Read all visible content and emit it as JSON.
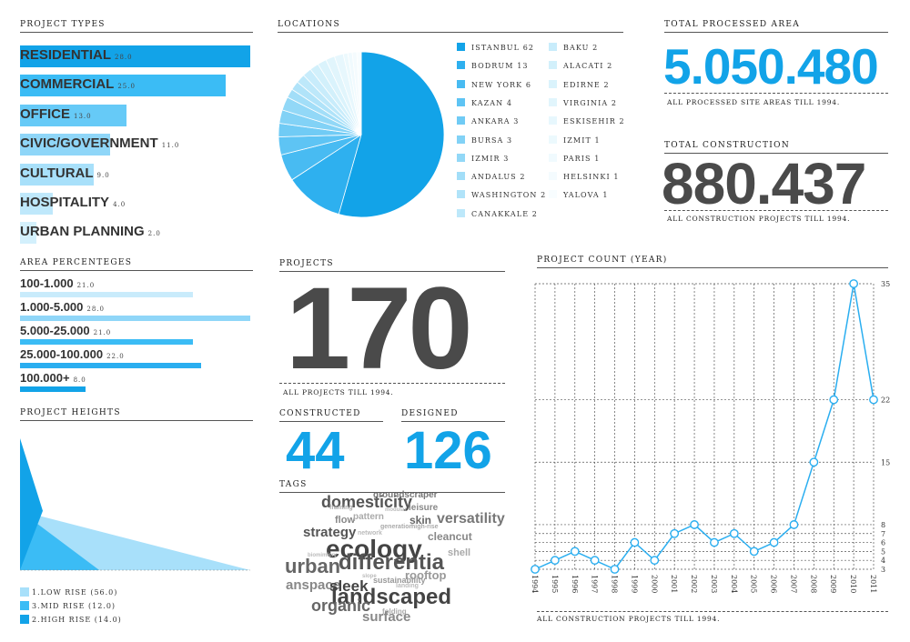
{
  "sections": {
    "project_types": "PROJECT TYPES",
    "locations": "LOCATIONS",
    "total_processed_area": "TOTAL PROCESSED AREA",
    "total_construction": "TOTAL CONSTRUCTION",
    "area_percentages": "AREA PERCENTEGES",
    "projects": "PROJECTS",
    "project_count_year": "PROJECT COUNT (YEAR)",
    "project_heights": "PROJECT HEIGHTS",
    "constructed": "CONSTRUCTED",
    "designed": "DESIGNED",
    "tags": "TAGS"
  },
  "stats": {
    "processed_area_value": "5.050.480",
    "processed_area_note": "ALL PROCESSED SITE AREAS TILL 1994.",
    "construction_value": "880.437",
    "construction_note": "ALL CONSTRUCTION PROJECTS TILL 1994.",
    "projects_value": "170",
    "projects_note": "ALL PROJECTS TILL 1994.",
    "constructed_value": "44",
    "designed_value": "126",
    "count_note": "ALL CONSTRUCTION PROJECTS TILL 1994."
  },
  "colors": {
    "accent": "#12a3e8",
    "mid": "#3bbcf5",
    "light": "#8fd6f8",
    "pale": "#c9ebfb",
    "text": "#444444"
  },
  "chart_data": [
    {
      "type": "bar",
      "name_ref": "project_types",
      "categories": [
        "RESIDENTIAL",
        "COMMERCIAL",
        "OFFICE",
        "CIVIC/GOVERNMENT",
        "CULTURAL",
        "HOSPITALITY",
        "URBAN PLANNING"
      ],
      "values": [
        28.0,
        25.0,
        13.0,
        11.0,
        9.0,
        4.0,
        2.0
      ],
      "value_labels": [
        "28.0",
        "25.0",
        "13.0",
        "11.0",
        "9.0",
        "4.0",
        "2.0"
      ],
      "colors": [
        "#12a3e8",
        "#3bbcf5",
        "#66caf7",
        "#8fd6f8",
        "#a8e0fa",
        "#bfe8fb",
        "#d3f0fc"
      ]
    },
    {
      "type": "pie",
      "name_ref": "locations",
      "categories": [
        "ISTANBUL",
        "BODRUM",
        "NEW YORK",
        "KAZAN",
        "ANKARA",
        "BURSA",
        "IZMIR",
        "ANDALUS",
        "WASHINGTON",
        "CANAKKALE",
        "BAKU",
        "ALACATI",
        "EDIRNE",
        "VIRGINIA",
        "ESKISEHIR",
        "IZMIT",
        "PARIS",
        "HELSINKI",
        "YALOVA"
      ],
      "values": [
        62,
        13,
        6,
        4,
        3,
        3,
        3,
        2,
        2,
        2,
        2,
        2,
        2,
        2,
        2,
        1,
        1,
        1,
        1
      ],
      "value_labels": [
        "62",
        "13",
        "6",
        "4",
        "3",
        "3",
        "3",
        "2",
        "2",
        "2",
        "2",
        "2",
        "2",
        "2",
        "2",
        "1",
        "1",
        "1",
        "1"
      ]
    },
    {
      "type": "bar",
      "name_ref": "area_percentages",
      "categories": [
        "100-1.000",
        "1.000-5.000",
        "5.000-25.000",
        "25.000-100.000",
        "100.000+"
      ],
      "values": [
        21.0,
        28.0,
        21.0,
        22.0,
        8.0
      ],
      "value_labels": [
        "21.0",
        "28.0",
        "21.0",
        "22.0",
        "8.0"
      ],
      "colors": [
        "#c9ebfb",
        "#8fd6f8",
        "#3bbcf5",
        "#2aaef0",
        "#12a3e8"
      ]
    },
    {
      "type": "area",
      "name_ref": "project_heights",
      "series": [
        {
          "name": "1.LOW RISE",
          "value": 56.0,
          "label": "(56.0)",
          "color": "#a8e0fa"
        },
        {
          "name": "3.MID RISE",
          "value": 12.0,
          "label": "(12.0)",
          "color": "#3bbcf5"
        },
        {
          "name": "2.HIGH RISE",
          "value": 14.0,
          "label": "(14.0)",
          "color": "#12a3e8"
        }
      ]
    },
    {
      "type": "line",
      "name_ref": "project_count_year",
      "x": [
        "1994",
        "1995",
        "1996",
        "1997",
        "1998",
        "1999",
        "2000",
        "2001",
        "2002",
        "2003",
        "2004",
        "2005",
        "2006",
        "2007",
        "2008",
        "2009",
        "2010",
        "2011"
      ],
      "y": [
        3,
        4,
        5,
        4,
        3,
        6,
        4,
        7,
        8,
        6,
        7,
        5,
        6,
        8,
        15,
        22,
        35,
        22
      ],
      "yticks": [
        3,
        4,
        5,
        6,
        7,
        8,
        15,
        22,
        35
      ],
      "ylim": [
        3,
        35
      ],
      "grid": true
    }
  ],
  "tags": [
    {
      "text": "domesticity",
      "size": 18,
      "color": "#555"
    },
    {
      "text": "groundscraper",
      "size": 10,
      "color": "#777"
    },
    {
      "text": "framing",
      "size": 7,
      "color": "#aaa"
    },
    {
      "text": "modular",
      "size": 6,
      "color": "#bbb"
    },
    {
      "text": "leisure",
      "size": 10,
      "color": "#888"
    },
    {
      "text": "flow",
      "size": 11,
      "color": "#888"
    },
    {
      "text": "pattern",
      "size": 10,
      "color": "#aaa"
    },
    {
      "text": "skin",
      "size": 12,
      "color": "#666"
    },
    {
      "text": "versatility",
      "size": 16,
      "color": "#777"
    },
    {
      "text": "strategy",
      "size": 15,
      "color": "#555"
    },
    {
      "text": "generation",
      "size": 7,
      "color": "#aaa"
    },
    {
      "text": "high-rise",
      "size": 7,
      "color": "#aaa"
    },
    {
      "text": "network",
      "size": 7,
      "color": "#bbb"
    },
    {
      "text": "cleancut",
      "size": 12,
      "color": "#888"
    },
    {
      "text": "ecology",
      "size": 28,
      "color": "#444"
    },
    {
      "text": "biomimicry",
      "size": 6,
      "color": "#bbb"
    },
    {
      "text": "shell",
      "size": 11,
      "color": "#aaa"
    },
    {
      "text": "urban",
      "size": 22,
      "color": "#666"
    },
    {
      "text": "differentia",
      "size": 24,
      "color": "#555"
    },
    {
      "text": "rooftop",
      "size": 13,
      "color": "#999"
    },
    {
      "text": "slope",
      "size": 6,
      "color": "#bbb"
    },
    {
      "text": "sustainability",
      "size": 9,
      "color": "#999"
    },
    {
      "text": "landing",
      "size": 7,
      "color": "#bbb"
    },
    {
      "text": "anspace",
      "size": 15,
      "color": "#888"
    },
    {
      "text": "sleek",
      "size": 17,
      "color": "#444"
    },
    {
      "text": "landscaped",
      "size": 24,
      "color": "#444"
    },
    {
      "text": "organic",
      "size": 18,
      "color": "#666"
    },
    {
      "text": "folding",
      "size": 8,
      "color": "#aaa"
    },
    {
      "text": "surface",
      "size": 15,
      "color": "#888"
    }
  ]
}
